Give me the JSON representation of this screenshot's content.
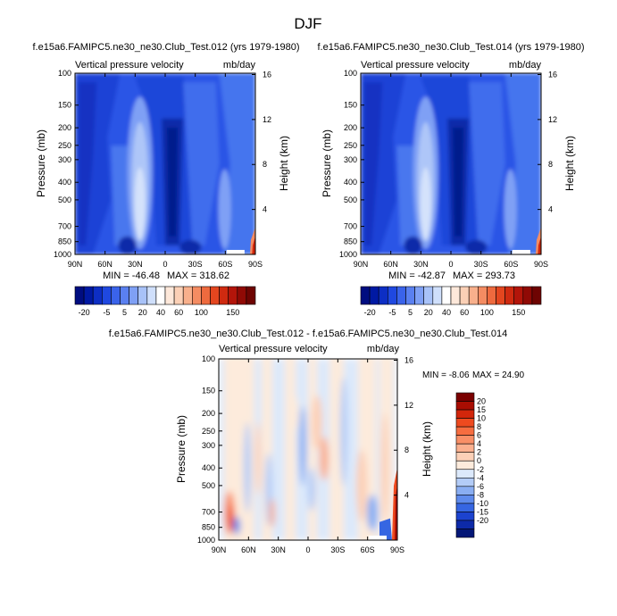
{
  "figure_title": "DJF",
  "chart_data": [
    {
      "type": "heatmap",
      "title": "f.e15a6.FAMIPC5.ne30_ne30.Club_Test.012 (yrs 1979-1980)",
      "left_label": "Vertical pressure velocity",
      "right_label": "mb/day",
      "xlabel": "",
      "ylabel": "Pressure (mb)",
      "y2label": "Height (km)",
      "x_ticks": [
        "90N",
        "60N",
        "30N",
        "0",
        "30S",
        "60S",
        "90S"
      ],
      "x_values": [
        90,
        60,
        30,
        0,
        -30,
        -60,
        -90
      ],
      "y_ticks": [
        100,
        150,
        200,
        250,
        300,
        400,
        500,
        700,
        850,
        1000
      ],
      "y2_ticks": [
        16,
        12,
        8,
        4
      ],
      "ylim": [
        1000,
        100
      ],
      "xlim": [
        90,
        -90
      ],
      "y_scale": "log",
      "min_label": "MIN = -46.48",
      "max_label": "MAX = 318.62",
      "colorbar_labels": [
        "-20",
        "-5",
        "5",
        "20",
        "40",
        "60",
        "100",
        "150"
      ],
      "colorbar_levels": [
        -50,
        -40,
        -30,
        -20,
        -15,
        -10,
        -5,
        0,
        5,
        10,
        15,
        20,
        30,
        40,
        50,
        60,
        80,
        100,
        125,
        150
      ],
      "colorbar_colors": [
        "#000d80",
        "#0019a3",
        "#0d2ec4",
        "#1f48e0",
        "#3a63ea",
        "#5a80f0",
        "#7fa0f5",
        "#a8c2f8",
        "#cfdffb",
        "#ffffff",
        "#fde8da",
        "#fbd0b6",
        "#f8b08c",
        "#f48c62",
        "#ee6a3e",
        "#e3461f",
        "#cf2a10",
        "#b3150a",
        "#900a05",
        "#6e0402"
      ],
      "field": "background"
    },
    {
      "type": "heatmap",
      "title": "f.e15a6.FAMIPC5.ne30_ne30.Club_Test.014 (yrs 1979-1980)",
      "left_label": "Vertical pressure velocity",
      "right_label": "mb/day",
      "xlabel": "",
      "ylabel": "Pressure (mb)",
      "y2label": "Height (km)",
      "x_ticks": [
        "90N",
        "60N",
        "30N",
        "0",
        "30S",
        "60S",
        "90S"
      ],
      "x_values": [
        90,
        60,
        30,
        0,
        -30,
        -60,
        -90
      ],
      "y_ticks": [
        100,
        150,
        200,
        250,
        300,
        400,
        500,
        700,
        850,
        1000
      ],
      "y2_ticks": [
        16,
        12,
        8,
        4
      ],
      "ylim": [
        1000,
        100
      ],
      "xlim": [
        90,
        -90
      ],
      "y_scale": "log",
      "min_label": "MIN = -42.87",
      "max_label": "MAX = 293.73",
      "colorbar_labels": [
        "-20",
        "-5",
        "5",
        "20",
        "40",
        "60",
        "100",
        "150"
      ],
      "colorbar_levels": [
        -50,
        -40,
        -30,
        -20,
        -15,
        -10,
        -5,
        0,
        5,
        10,
        15,
        20,
        30,
        40,
        50,
        60,
        80,
        100,
        125,
        150
      ],
      "colorbar_colors": [
        "#000d80",
        "#0019a3",
        "#0d2ec4",
        "#1f48e0",
        "#3a63ea",
        "#5a80f0",
        "#7fa0f5",
        "#a8c2f8",
        "#cfdffb",
        "#ffffff",
        "#fde8da",
        "#fbd0b6",
        "#f8b08c",
        "#f48c62",
        "#ee6a3e",
        "#e3461f",
        "#cf2a10",
        "#b3150a",
        "#900a05",
        "#6e0402"
      ],
      "field": "background"
    },
    {
      "type": "heatmap",
      "title": "f.e15a6.FAMIPC5.ne30_ne30.Club_Test.012 - f.e15a6.FAMIPC5.ne30_ne30.Club_Test.014",
      "left_label": "Vertical pressure velocity",
      "right_label": "mb/day",
      "xlabel": "",
      "ylabel": "Pressure (mb)",
      "y2label": "Height (km)",
      "x_ticks": [
        "90N",
        "60N",
        "30N",
        "0",
        "30S",
        "60S",
        "90S"
      ],
      "x_values": [
        90,
        60,
        30,
        0,
        -30,
        -60,
        -90
      ],
      "y_ticks": [
        100,
        150,
        200,
        250,
        300,
        400,
        500,
        700,
        850,
        1000
      ],
      "y2_ticks": [
        16,
        12,
        8,
        4
      ],
      "ylim": [
        1000,
        100
      ],
      "xlim": [
        90,
        -90
      ],
      "y_scale": "log",
      "min_label": "MIN = -8.06",
      "max_label": "MAX = 24.90",
      "colorbar_labels": [
        "20",
        "15",
        "10",
        "8",
        "6",
        "4",
        "2",
        "0",
        "-2",
        "-4",
        "-6",
        "-8",
        "-10",
        "-15",
        "-20"
      ],
      "colorbar_colors": [
        "#7a0000",
        "#a80d02",
        "#d2260b",
        "#ee4a1f",
        "#f66d40",
        "#f98f67",
        "#fbb08f",
        "#fcd0b7",
        "#fdebdc",
        "#dce9fb",
        "#b3ccf7",
        "#8aaef2",
        "#5f8bec",
        "#3666e2",
        "#1c43cf",
        "#0d2aa8",
        "#041777"
      ],
      "field": "difference"
    }
  ]
}
